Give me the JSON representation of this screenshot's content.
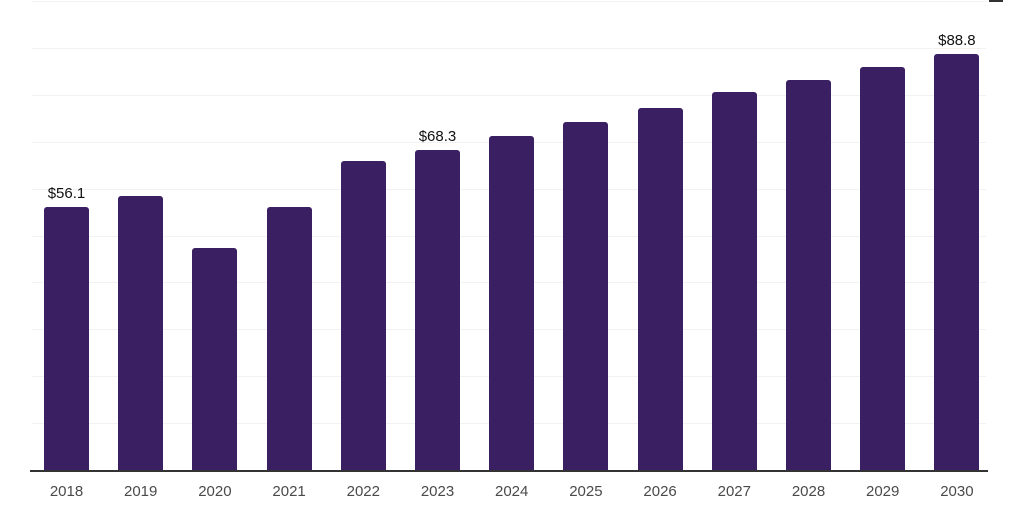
{
  "chart_data": {
    "type": "bar",
    "title": "",
    "xlabel": "",
    "ylabel": "",
    "categories": [
      "2018",
      "2019",
      "2020",
      "2021",
      "2022",
      "2023",
      "2024",
      "2025",
      "2026",
      "2027",
      "2028",
      "2029",
      "2030"
    ],
    "values": [
      56.1,
      58.5,
      47.4,
      56.0,
      65.8,
      68.3,
      71.3,
      74.2,
      77.2,
      80.6,
      83.1,
      85.9,
      88.8
    ],
    "data_labels": [
      "$56.1",
      "",
      "",
      "",
      "",
      "$68.3",
      "",
      "",
      "",
      "",
      "",
      "",
      "$88.8"
    ],
    "ylim": [
      0,
      100
    ],
    "gridline_step": 10,
    "grid": true,
    "legend_position": "none",
    "colors": {
      "bar_fill": "#3a2062",
      "gridline": "#f2f2f2",
      "axis_line": "#333333",
      "tick_label": "#4a4a4a",
      "data_label": "#111111",
      "background": "#ffffff"
    }
  }
}
